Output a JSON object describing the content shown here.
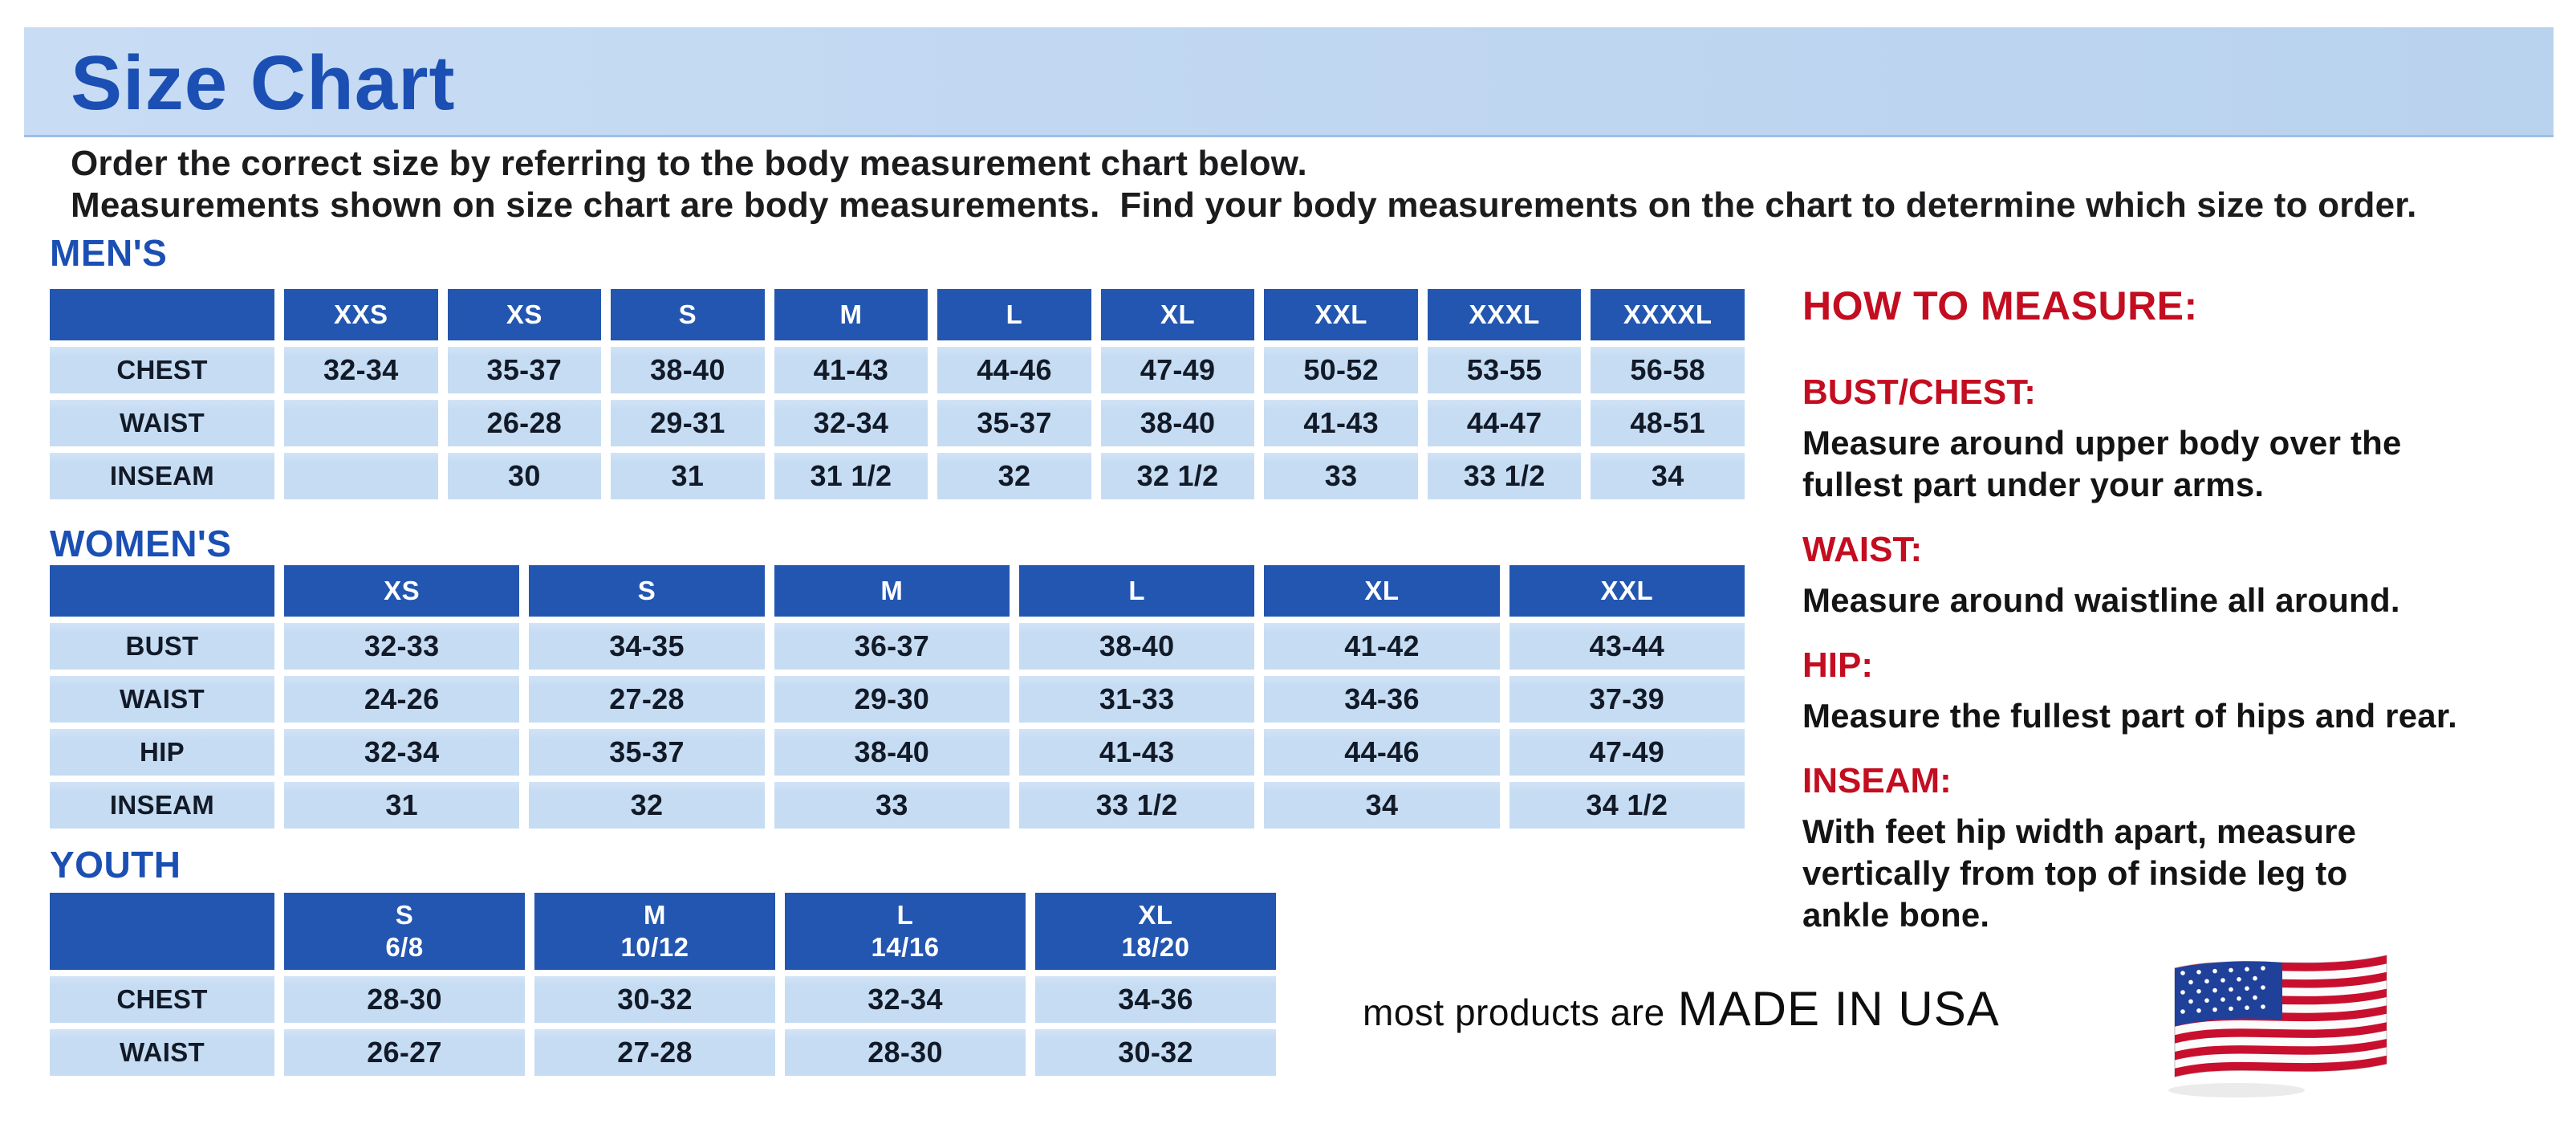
{
  "header": {
    "title": "Size Chart"
  },
  "intro": {
    "lines": [
      "Order the correct size by referring to the body measurement chart below.",
      "Measurements shown on size chart are body measurements.  Find your body measurements on the chart to determine which size to order."
    ]
  },
  "colors": {
    "brand_blue": "#1b4fb4",
    "banner_blue": "#b9d2ee",
    "banner_blue_light": "#c8dcf4",
    "table_header_blue": "#2356b0",
    "table_cell_blue": "#c6dcf3",
    "accent_red": "#c30d20",
    "text_dark": "#121a28",
    "flag_red": "#c8102e",
    "flag_blue": "#20419a"
  },
  "tables": {
    "mens": {
      "heading": "MEN'S",
      "columns": [
        "XXS",
        "XS",
        "S",
        "M",
        "L",
        "XL",
        "XXL",
        "XXXL",
        "XXXXL"
      ],
      "rows": [
        {
          "label": "CHEST",
          "values": [
            "32-34",
            "35-37",
            "38-40",
            "41-43",
            "44-46",
            "47-49",
            "50-52",
            "53-55",
            "56-58"
          ]
        },
        {
          "label": "WAIST",
          "values": [
            "",
            "26-28",
            "29-31",
            "32-34",
            "35-37",
            "38-40",
            "41-43",
            "44-47",
            "48-51"
          ]
        },
        {
          "label": "INSEAM",
          "values": [
            "",
            "30",
            "31",
            "31 1/2",
            "32",
            "32 1/2",
            "33",
            "33 1/2",
            "34"
          ]
        }
      ]
    },
    "womens": {
      "heading": "WOMEN'S",
      "columns": [
        "XS",
        "S",
        "M",
        "L",
        "XL",
        "XXL"
      ],
      "rows": [
        {
          "label": "BUST",
          "values": [
            "32-33",
            "34-35",
            "36-37",
            "38-40",
            "41-42",
            "43-44"
          ]
        },
        {
          "label": "WAIST",
          "values": [
            "24-26",
            "27-28",
            "29-30",
            "31-33",
            "34-36",
            "37-39"
          ]
        },
        {
          "label": "HIP",
          "values": [
            "32-34",
            "35-37",
            "38-40",
            "41-43",
            "44-46",
            "47-49"
          ]
        },
        {
          "label": "INSEAM",
          "values": [
            "31",
            "32",
            "33",
            "33 1/2",
            "34",
            "34 1/2"
          ]
        }
      ]
    },
    "youth": {
      "heading": "YOUTH",
      "columns": [
        [
          "S",
          "6/8"
        ],
        [
          "M",
          "10/12"
        ],
        [
          "L",
          "14/16"
        ],
        [
          "XL",
          "18/20"
        ]
      ],
      "rows": [
        {
          "label": "CHEST",
          "values": [
            "28-30",
            "30-32",
            "32-34",
            "34-36"
          ]
        },
        {
          "label": "WAIST",
          "values": [
            "26-27",
            "27-28",
            "28-30",
            "30-32"
          ]
        }
      ]
    }
  },
  "how_to_measure": {
    "heading": "HOW TO MEASURE:",
    "items": [
      {
        "term": "BUST/CHEST:",
        "description": [
          "Measure around upper body over the",
          "fullest part under your arms."
        ]
      },
      {
        "term": "WAIST:",
        "description": [
          "Measure around waistline all around."
        ]
      },
      {
        "term": "HIP:",
        "description": [
          "Measure the fullest part of hips and rear."
        ]
      },
      {
        "term": "INSEAM:",
        "description": [
          "With feet hip width apart, measure",
          "vertically from top of inside leg to",
          "ankle bone."
        ]
      }
    ]
  },
  "footer": {
    "prefix": "most products are",
    "emphasis": "MADE IN USA",
    "flag_icon": "us-flag-icon"
  }
}
